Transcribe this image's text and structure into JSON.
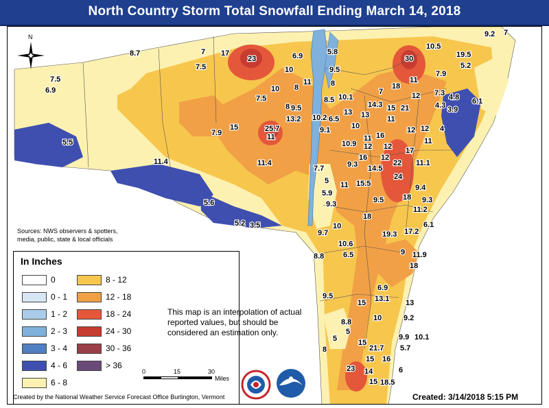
{
  "title": "North Country Storm Total Snowfall Ending March 14, 2018",
  "compass": {
    "label": "N",
    "icon": "north-arrow-icon"
  },
  "sources": {
    "line1": "Sources: NWS observers & spotters,",
    "line2": "media, public, state & local officials"
  },
  "legend": {
    "title": "In Inches",
    "items": [
      {
        "label": "0",
        "color": "#ffffff"
      },
      {
        "label": "0 - 1",
        "color": "#d7e6f4"
      },
      {
        "label": "1 - 2",
        "color": "#a9cde9"
      },
      {
        "label": "2 - 3",
        "color": "#7fb1dc"
      },
      {
        "label": "3 - 4",
        "color": "#4f7fc0"
      },
      {
        "label": "4 - 6",
        "color": "#3f4fb0"
      },
      {
        "label": "6 - 8",
        "color": "#fcf1b0"
      },
      {
        "label": "8 - 12",
        "color": "#f7c64d"
      },
      {
        "label": "12 - 18",
        "color": "#f1a045"
      },
      {
        "label": "18 - 24",
        "color": "#e4573a"
      },
      {
        "label": "24 - 30",
        "color": "#c63c30"
      },
      {
        "label": "30 - 36",
        "color": "#9a3f46"
      },
      {
        "label": "> 36",
        "color": "#6a4a78"
      }
    ]
  },
  "note": "This map is an interpolation of actual reported values, but should be considered an estimation only.",
  "scale": {
    "ticks": [
      "0",
      "15",
      "30"
    ],
    "unit": "Miles"
  },
  "credit": "Created by the National Weather Service Forecast Office Burlington, Vermont",
  "created": "Created:  3/14/2018 5:15 PM",
  "logos": {
    "nws": "nws-logo-icon",
    "noaa": "noaa-logo-icon"
  },
  "observations": [
    "9.2",
    "7",
    "8.7",
    "7",
    "17",
    "23",
    "6.9",
    "5.8",
    "30",
    "10.5",
    "19.5",
    "7.5",
    "5.2",
    "7.5",
    "6.9",
    "10",
    "9.5",
    "8",
    "11",
    "7.9",
    "10",
    "8",
    "18",
    "11",
    "7.5",
    "10.1",
    "7",
    "12",
    "7.3",
    "4.8",
    "6.1",
    "8",
    "9.5",
    "8.5",
    "14.3",
    "15",
    "21",
    "4.3",
    "3.9",
    "13.2",
    "13",
    "13",
    "11",
    "10.2",
    "6.5",
    "10",
    "12",
    "12",
    "4",
    "5.5",
    "7.9",
    "15",
    "25.7",
    "9.1",
    "11",
    "16",
    "11",
    "11",
    "10.9",
    "12",
    "12",
    "17",
    "11.4",
    "16",
    "12",
    "11.4",
    "7.7",
    "9.3",
    "14.5",
    "22",
    "11.1",
    "5",
    "11",
    "24",
    "5.9",
    "15.5",
    "9.4",
    "9.3",
    "18",
    "9.3",
    "5.6",
    "9.5",
    "11.2",
    "18",
    "5.2",
    "3.5",
    "10",
    "6.1",
    "9.7",
    "17.2",
    "19.3",
    "10.6",
    "6.5",
    "8.8",
    "9",
    "11.9",
    "18",
    "6.9",
    "9.5",
    "13.1",
    "15",
    "13",
    "8.8",
    "10",
    "9.2",
    "5",
    "9.9",
    "10.1",
    "5",
    "8",
    "15",
    "21.7",
    "5.7",
    "15",
    "16",
    "6",
    "23",
    "14",
    "15",
    "18.5"
  ]
}
